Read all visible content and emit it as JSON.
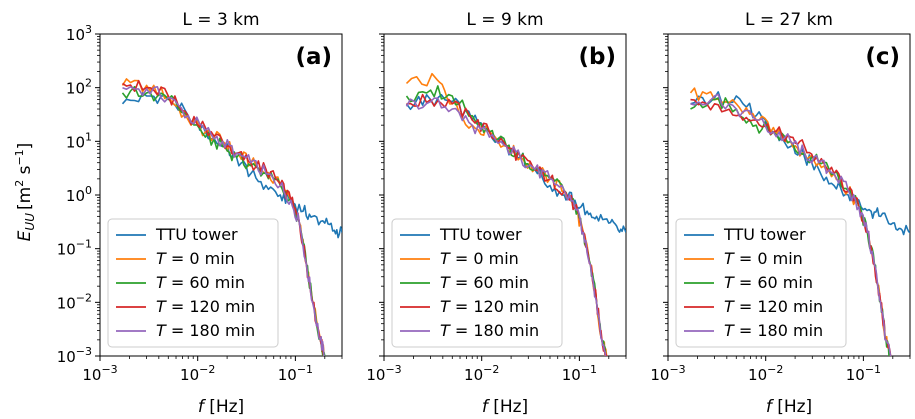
{
  "figure": {
    "ylabel": "E_UU [m² s⁻¹]",
    "ylabel_parts": {
      "main": "E",
      "sub": "UU",
      "units": "[m",
      "sup1": "2",
      "s": " s",
      "sup2": "−1",
      "close": "]"
    },
    "xlabel": "f [Hz]",
    "xlabel_parts": {
      "italic": "f",
      "rest": " [Hz]"
    }
  },
  "colors": {
    "TTU tower": "#1f77b4",
    "T = 0 min": "#ff7f0e",
    "T = 60 min": "#2ca02c",
    "T = 120 min": "#d62728",
    "T = 180 min": "#9467bd"
  },
  "legend": [
    {
      "name": "TTU tower",
      "italic": "",
      "rest": "TTU tower"
    },
    {
      "name": "T = 0 min",
      "italic": "T",
      "rest": " = 0 min"
    },
    {
      "name": "T = 60 min",
      "italic": "T",
      "rest": " = 60 min"
    },
    {
      "name": "T = 120 min",
      "italic": "T",
      "rest": " = 120 min"
    },
    {
      "name": "T = 180 min",
      "italic": "T",
      "rest": " = 180 min"
    }
  ],
  "x_tick_labels": [
    {
      "base": "10",
      "exp": "−3"
    },
    {
      "base": "10",
      "exp": "−2"
    },
    {
      "base": "10",
      "exp": "−1"
    }
  ],
  "y_tick_labels": [
    {
      "base": "10",
      "exp": "3"
    },
    {
      "base": "10",
      "exp": "2"
    },
    {
      "base": "10",
      "exp": "1"
    },
    {
      "base": "10",
      "exp": "0"
    },
    {
      "base": "10",
      "exp": "−1"
    },
    {
      "base": "10",
      "exp": "−2"
    },
    {
      "base": "10",
      "exp": "−3"
    }
  ],
  "chart_data": [
    {
      "type": "line",
      "title": "L = 3 km",
      "panel_label": "(a)",
      "xscale": "log",
      "yscale": "log",
      "xlim": [
        0.001,
        0.3
      ],
      "ylim": [
        0.001,
        1000
      ],
      "xlabel": "f [Hz]",
      "ylabel": "E_UU [m² s⁻¹]",
      "legend_position": "lower-left",
      "series": [
        {
          "name": "TTU tower",
          "x": [
            0.0017,
            0.003,
            0.005,
            0.008,
            0.012,
            0.018,
            0.025,
            0.035,
            0.05,
            0.07,
            0.09,
            0.12,
            0.15,
            0.2,
            0.25,
            0.3
          ],
          "y": [
            50,
            70,
            65,
            30,
            15,
            8,
            5,
            2.5,
            1.5,
            1.0,
            0.8,
            0.5,
            0.4,
            0.3,
            0.22,
            0.2
          ]
        },
        {
          "name": "T = 0 min",
          "x": [
            0.0017,
            0.003,
            0.005,
            0.008,
            0.012,
            0.018,
            0.025,
            0.035,
            0.05,
            0.07,
            0.09,
            0.11,
            0.13,
            0.15,
            0.18,
            0.2
          ],
          "y": [
            110,
            110,
            70,
            25,
            15,
            10,
            6,
            4,
            2.5,
            1.5,
            0.8,
            0.3,
            0.05,
            0.01,
            0.002,
            0.001
          ]
        },
        {
          "name": "T = 60 min",
          "x": [
            0.0017,
            0.003,
            0.005,
            0.008,
            0.012,
            0.018,
            0.025,
            0.035,
            0.05,
            0.07,
            0.09,
            0.11,
            0.13,
            0.15,
            0.18,
            0.2
          ],
          "y": [
            80,
            80,
            60,
            30,
            12,
            8,
            5,
            3.5,
            2.5,
            1.5,
            0.8,
            0.3,
            0.05,
            0.01,
            0.002,
            0.001
          ]
        },
        {
          "name": "T = 120 min",
          "x": [
            0.0017,
            0.003,
            0.005,
            0.008,
            0.012,
            0.018,
            0.025,
            0.035,
            0.05,
            0.07,
            0.09,
            0.11,
            0.13,
            0.15,
            0.18,
            0.2
          ],
          "y": [
            120,
            100,
            70,
            30,
            18,
            10,
            6,
            4,
            3,
            1.6,
            0.8,
            0.3,
            0.05,
            0.01,
            0.002,
            0.001
          ]
        },
        {
          "name": "T = 180 min",
          "x": [
            0.0017,
            0.003,
            0.005,
            0.008,
            0.012,
            0.018,
            0.025,
            0.035,
            0.05,
            0.07,
            0.09,
            0.11,
            0.13,
            0.15,
            0.18,
            0.2
          ],
          "y": [
            100,
            95,
            65,
            30,
            16,
            10,
            6,
            4,
            2.5,
            1.5,
            0.8,
            0.3,
            0.05,
            0.01,
            0.002,
            0.001
          ]
        }
      ]
    },
    {
      "type": "line",
      "title": "L = 9 km",
      "panel_label": "(b)",
      "xscale": "log",
      "yscale": "log",
      "xlim": [
        0.001,
        0.3
      ],
      "ylim": [
        0.001,
        1000
      ],
      "xlabel": "f [Hz]",
      "legend_position": "lower-left",
      "series": [
        {
          "name": "TTU tower",
          "x": [
            0.0017,
            0.003,
            0.005,
            0.008,
            0.012,
            0.018,
            0.025,
            0.035,
            0.05,
            0.07,
            0.09,
            0.12,
            0.15,
            0.2,
            0.25,
            0.3
          ],
          "y": [
            50,
            60,
            55,
            25,
            15,
            8,
            5,
            3,
            1.5,
            1.0,
            0.8,
            0.5,
            0.4,
            0.3,
            0.22,
            0.2
          ]
        },
        {
          "name": "T = 0 min",
          "x": [
            0.0017,
            0.0035,
            0.005,
            0.008,
            0.012,
            0.018,
            0.025,
            0.035,
            0.05,
            0.07,
            0.09,
            0.11,
            0.13,
            0.15,
            0.17,
            0.19
          ],
          "y": [
            120,
            140,
            50,
            20,
            15,
            8,
            5,
            3,
            2,
            1.2,
            0.6,
            0.2,
            0.05,
            0.01,
            0.002,
            0.001
          ]
        },
        {
          "name": "T = 60 min",
          "x": [
            0.0017,
            0.003,
            0.005,
            0.008,
            0.012,
            0.018,
            0.025,
            0.035,
            0.05,
            0.07,
            0.09,
            0.11,
            0.13,
            0.15,
            0.17,
            0.19
          ],
          "y": [
            70,
            90,
            70,
            30,
            15,
            8,
            5,
            3,
            2,
            1.2,
            0.6,
            0.2,
            0.05,
            0.01,
            0.002,
            0.001
          ]
        },
        {
          "name": "T = 120 min",
          "x": [
            0.0017,
            0.003,
            0.005,
            0.008,
            0.012,
            0.018,
            0.025,
            0.035,
            0.05,
            0.07,
            0.09,
            0.11,
            0.13,
            0.15,
            0.17,
            0.19
          ],
          "y": [
            50,
            60,
            50,
            25,
            15,
            8,
            5,
            3,
            2,
            1.2,
            0.6,
            0.2,
            0.05,
            0.01,
            0.002,
            0.001
          ]
        },
        {
          "name": "T = 180 min",
          "x": [
            0.0017,
            0.003,
            0.005,
            0.008,
            0.012,
            0.018,
            0.025,
            0.035,
            0.05,
            0.07,
            0.09,
            0.11,
            0.13,
            0.15,
            0.17,
            0.19
          ],
          "y": [
            45,
            55,
            40,
            20,
            12,
            8,
            5,
            3,
            2,
            1.2,
            0.6,
            0.2,
            0.05,
            0.01,
            0.002,
            0.001
          ]
        }
      ]
    },
    {
      "type": "line",
      "title": "L = 27 km",
      "panel_label": "(c)",
      "xscale": "log",
      "yscale": "log",
      "xlim": [
        0.001,
        0.3
      ],
      "ylim": [
        0.001,
        1000
      ],
      "xlabel": "f [Hz]",
      "legend_position": "lower-left",
      "series": [
        {
          "name": "TTU tower",
          "x": [
            0.0017,
            0.003,
            0.005,
            0.008,
            0.012,
            0.018,
            0.025,
            0.035,
            0.05,
            0.07,
            0.09,
            0.12,
            0.15,
            0.2,
            0.25,
            0.3
          ],
          "y": [
            50,
            65,
            70,
            30,
            15,
            8,
            5,
            3,
            1.5,
            1.0,
            0.8,
            0.5,
            0.4,
            0.3,
            0.22,
            0.2
          ]
        },
        {
          "name": "T = 0 min",
          "x": [
            0.0017,
            0.003,
            0.005,
            0.008,
            0.012,
            0.018,
            0.025,
            0.035,
            0.05,
            0.07,
            0.09,
            0.11,
            0.13,
            0.15,
            0.17,
            0.19
          ],
          "y": [
            80,
            60,
            50,
            25,
            18,
            10,
            6,
            4,
            2.5,
            1.2,
            0.6,
            0.2,
            0.05,
            0.01,
            0.002,
            0.001
          ]
        },
        {
          "name": "T = 60 min",
          "x": [
            0.0017,
            0.003,
            0.005,
            0.008,
            0.012,
            0.018,
            0.025,
            0.035,
            0.05,
            0.07,
            0.09,
            0.11,
            0.13,
            0.15,
            0.17,
            0.19
          ],
          "y": [
            40,
            60,
            40,
            20,
            15,
            10,
            6,
            4,
            2.5,
            1.2,
            0.6,
            0.2,
            0.05,
            0.01,
            0.002,
            0.001
          ]
        },
        {
          "name": "T = 120 min",
          "x": [
            0.0017,
            0.003,
            0.005,
            0.008,
            0.012,
            0.018,
            0.025,
            0.035,
            0.05,
            0.07,
            0.09,
            0.11,
            0.13,
            0.15,
            0.17,
            0.19
          ],
          "y": [
            60,
            50,
            30,
            25,
            15,
            12,
            8,
            4,
            2.5,
            1.2,
            0.6,
            0.2,
            0.05,
            0.01,
            0.002,
            0.001
          ]
        },
        {
          "name": "T = 180 min",
          "x": [
            0.0017,
            0.003,
            0.005,
            0.008,
            0.012,
            0.018,
            0.025,
            0.035,
            0.05,
            0.07,
            0.09,
            0.11,
            0.13,
            0.15,
            0.17,
            0.19
          ],
          "y": [
            50,
            70,
            40,
            25,
            15,
            10,
            6,
            4,
            2.5,
            1.2,
            0.6,
            0.2,
            0.05,
            0.01,
            0.002,
            0.001
          ]
        }
      ]
    }
  ]
}
